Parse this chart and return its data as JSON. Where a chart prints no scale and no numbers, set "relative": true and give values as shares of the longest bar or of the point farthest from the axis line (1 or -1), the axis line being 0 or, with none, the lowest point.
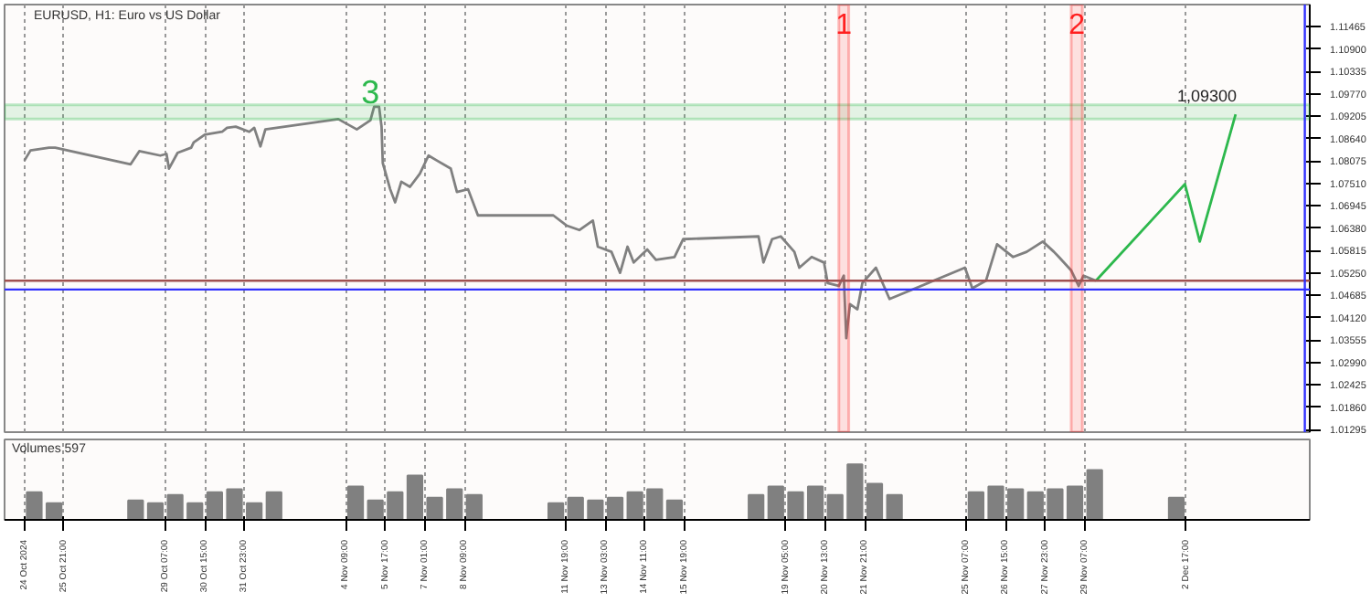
{
  "chart_data": [
    {
      "type": "line",
      "title": "EURUSD, H1: Euro vs US Dollar",
      "xlim": [
        "2024-10-23T21:00",
        "2024-12-06T21:00"
      ],
      "ylim": [
        1.0123,
        1.1202
      ],
      "xticks": [
        "2024-10-24T13:00",
        "2024-10-25T21:00",
        "2024-10-29T07:00",
        "2024-10-30T15:00",
        "2024-10-31T23:00",
        "2024-11-04T09:00",
        "2024-11-05T17:00",
        "2024-11-07T01:00",
        "2024-11-08T09:00",
        "2024-11-11T19:00",
        "2024-11-13T03:00",
        "2024-11-14T11:00",
        "2024-11-15T19:00",
        "2024-11-19T05:00",
        "2024-11-20T13:00",
        "2024-11-21T21:00",
        "2024-11-25T07:00",
        "2024-11-26T15:00",
        "2024-11-27T23:00",
        "2024-11-29T07:00",
        "2024-12-02T17:00"
      ],
      "yticks": [
        1.11465,
        {
          "value": 1.109,
          "label": "1.10900"
        },
        1.10335,
        {
          "value": 1.0977,
          "label": "1.09770"
        },
        1.09205,
        {
          "value": 1.0864,
          "label": "1.08640"
        },
        1.08075,
        {
          "value": 1.0751,
          "label": "1.07510"
        },
        1.06945,
        {
          "value": 1.0638,
          "label": "1.06380"
        },
        1.05815,
        {
          "value": 1.0525,
          "label": "1.05250"
        },
        1.04685,
        {
          "value": 1.0412,
          "label": "1.04120"
        },
        1.03555,
        {
          "value": 1.0299,
          "label": "1.02990"
        },
        1.02425,
        {
          "value": 1.0186,
          "label": "1.01860"
        },
        1.01295
      ],
      "tick_labels": "y",
      "grid": "x",
      "marker": "none",
      "series": [
        {
          "color": "#808080",
          "x": [
            "2024-10-24T13:00",
            "2024-10-24T18:00",
            "2024-10-25T09:00",
            "2024-10-25T14:00",
            "2024-10-28T03:00",
            "2024-10-28T10:00",
            "2024-10-29T03:00",
            "2024-10-29T08:00",
            "2024-10-29T10:00",
            "2024-10-29T17:00",
            "2024-10-30T04:00",
            "2024-10-30T06:00",
            "2024-10-30T15:00",
            "2024-10-31T05:00",
            "2024-10-31T09:00",
            "2024-10-31T16:00",
            "2024-11-01T03:00",
            "2024-11-01T07:00",
            "2024-11-01T12:00",
            "2024-11-01T16:00",
            "2024-11-04T03:00",
            "2024-11-04T18:00",
            "2024-11-05T05:00",
            "2024-11-05T08:00",
            "2024-11-05T12:00",
            "2024-11-05T14:00",
            "2024-11-05T15:00",
            "2024-11-05T21:00",
            "2024-11-06T01:00",
            "2024-11-06T06:00",
            "2024-11-06T13:00",
            "2024-11-06T21:00",
            "2024-11-07T04:00",
            "2024-11-07T11:00",
            "2024-11-07T22:00",
            "2024-11-08T03:00",
            "2024-11-08T12:00",
            "2024-11-08T20:00",
            "2024-11-11T09:00",
            "2024-11-11T20:00",
            "2024-11-12T06:00",
            "2024-11-12T17:00",
            "2024-11-12T21:00",
            "2024-11-13T08:00",
            "2024-11-13T15:00",
            "2024-11-13T21:00",
            "2024-11-14T02:00",
            "2024-11-14T13:00",
            "2024-11-14T20:00",
            "2024-11-15T11:00",
            "2024-11-15T18:00",
            "2024-11-18T07:00",
            "2024-11-18T11:00",
            "2024-11-18T18:00",
            "2024-11-19T01:00",
            "2024-11-19T12:00",
            "2024-11-19T16:00",
            "2024-11-20T02:00",
            "2024-11-20T12:00",
            "2024-11-20T15:00",
            "2024-11-21T00:00",
            "2024-11-21T04:00",
            "2024-11-21T06:00",
            "2024-11-21T09:00",
            "2024-11-21T15:00",
            "2024-11-21T19:00",
            "2024-11-22T06:00",
            "2024-11-22T17:00",
            "2024-11-25T06:00",
            "2024-11-25T12:00",
            "2024-11-25T23:00",
            "2024-11-26T08:00",
            "2024-11-26T21:00",
            "2024-11-27T08:00",
            "2024-11-27T21:00",
            "2024-11-28T06:00",
            "2024-11-28T10:00",
            "2024-11-28T20:00",
            "2024-11-29T02:00",
            "2024-11-29T06:00",
            "2024-11-29T16:00"
          ],
          "values": [
            1.0808,
            1.0834,
            1.0841,
            1.0841,
            1.0799,
            1.0832,
            1.0821,
            1.0825,
            1.0788,
            1.0828,
            1.0841,
            1.0854,
            1.0874,
            1.0881,
            1.0891,
            1.0894,
            1.0881,
            1.0891,
            1.0844,
            1.0887,
            1.0913,
            1.0887,
            1.091,
            1.0944,
            1.0944,
            1.0894,
            1.0802,
            1.0736,
            1.0703,
            1.0755,
            1.0742,
            1.0775,
            1.0821,
            1.0808,
            1.0788,
            1.0729,
            1.0736,
            1.067,
            1.067,
            1.0644,
            1.0633,
            1.0657,
            1.0591,
            1.0578,
            1.0525,
            1.0591,
            1.0551,
            1.0584,
            1.0558,
            1.0565,
            1.061,
            1.0617,
            1.0551,
            1.061,
            1.0617,
            1.0578,
            1.0538,
            1.0565,
            1.0551,
            1.0499,
            1.0492,
            1.0518,
            1.036,
            1.0446,
            1.0433,
            1.0499,
            1.0538,
            1.0459,
            1.0538,
            1.0486,
            1.0505,
            1.0597,
            1.0565,
            1.0578,
            1.0604,
            1.0578,
            1.0565,
            1.0531,
            1.0492,
            1.0518,
            1.0505
          ]
        },
        {
          "color": "#2db84d",
          "x": [
            "2024-11-29T16:00",
            "2024-12-02T16:00",
            "2024-12-03T04:00",
            "2024-12-04T09:00"
          ],
          "values": [
            1.0505,
            1.0749,
            1.0604,
            1.0925
          ]
        }
      ],
      "ref_lines": [
        {
          "axis": "y",
          "value": 1.0505,
          "color": "#a05050"
        },
        {
          "axis": "y",
          "value": 1.0483,
          "color": "#3030ff"
        },
        {
          "axis": "x",
          "value": "2024-12-06T17:00",
          "color": "#3030ff"
        }
      ],
      "bands": [
        {
          "axis": "y",
          "from": 1.0913,
          "to": 1.0949,
          "label": "1,09300",
          "color": "#2db84d"
        },
        {
          "axis": "x",
          "from": "2024-11-21T00:00",
          "to": "2024-11-21T08:00",
          "label": "1",
          "color": "#ff2020"
        },
        {
          "axis": "x",
          "from": "2024-11-28T20:00",
          "to": "2024-11-29T05:00",
          "label": "2",
          "color": "#ff2020"
        }
      ],
      "annotations": [
        {
          "text": "3",
          "x": "2024-11-05T05:00",
          "y": 1.0949
        }
      ]
    },
    {
      "type": "bar",
      "title": "Volumes 597",
      "relative": true,
      "color": "#808080",
      "xlim": [
        "2024-10-23T21:00",
        "2024-12-06T21:00"
      ],
      "xticks": [
        {
          "value": "2024-10-24T13:00",
          "label": "24 Oct 2024"
        },
        {
          "value": "2024-10-25T21:00",
          "label": "25 Oct 21:00"
        },
        {
          "value": "2024-10-29T07:00",
          "label": "29 Oct 07:00"
        },
        {
          "value": "2024-10-30T15:00",
          "label": "30 Oct 15:00"
        },
        {
          "value": "2024-10-31T23:00",
          "label": "31 Oct 23:00"
        },
        {
          "value": "2024-11-04T09:00",
          "label": "4 Nov 09:00"
        },
        {
          "value": "2024-11-05T17:00",
          "label": "5 Nov 17:00"
        },
        {
          "value": "2024-11-07T01:00",
          "label": "7 Nov 01:00"
        },
        {
          "value": "2024-11-08T09:00",
          "label": "8 Nov 09:00"
        },
        {
          "value": "2024-11-11T19:00",
          "label": "11 Nov 19:00"
        },
        {
          "value": "2024-11-13T03:00",
          "label": "13 Nov 03:00"
        },
        {
          "value": "2024-11-14T11:00",
          "label": "14 Nov 11:00"
        },
        {
          "value": "2024-11-15T19:00",
          "label": "15 Nov 19:00"
        },
        {
          "value": "2024-11-19T05:00",
          "label": "19 Nov 05:00"
        },
        {
          "value": "2024-11-20T13:00",
          "label": "20 Nov 13:00"
        },
        {
          "value": "2024-11-21T21:00",
          "label": "21 Nov 21:00"
        },
        {
          "value": "2024-11-25T07:00",
          "label": "25 Nov 07:00"
        },
        {
          "value": "2024-11-26T15:00",
          "label": "26 Nov 15:00"
        },
        {
          "value": "2024-11-27T23:00",
          "label": "27 Nov 23:00"
        },
        {
          "value": "2024-11-29T07:00",
          "label": "29 Nov 07:00"
        },
        {
          "value": "2024-12-02T17:00",
          "label": "2 Dec 17:00"
        }
      ],
      "tick_labels": "x",
      "grid": "x",
      "x": [
        "2024-10-24T21:00",
        "2024-10-25T13:00",
        "2024-10-28T07:00",
        "2024-10-28T23:00",
        "2024-10-29T15:00",
        "2024-10-30T07:00",
        "2024-10-30T23:00",
        "2024-10-31T15:00",
        "2024-11-01T07:00",
        "2024-11-01T23:00",
        "2024-11-04T17:00",
        "2024-11-05T09:00",
        "2024-11-06T01:00",
        "2024-11-06T17:00",
        "2024-11-07T09:00",
        "2024-11-08T01:00",
        "2024-11-08T17:00",
        "2024-11-11T11:00",
        "2024-11-12T03:00",
        "2024-11-12T19:00",
        "2024-11-13T11:00",
        "2024-11-14T03:00",
        "2024-11-14T19:00",
        "2024-11-15T11:00",
        "2024-11-18T05:00",
        "2024-11-18T21:00",
        "2024-11-19T13:00",
        "2024-11-20T05:00",
        "2024-11-20T21:00",
        "2024-11-21T13:00",
        "2024-11-22T05:00",
        "2024-11-22T21:00",
        "2024-11-25T15:00",
        "2024-11-26T07:00",
        "2024-11-26T23:00",
        "2024-11-27T15:00",
        "2024-11-28T07:00",
        "2024-11-28T23:00",
        "2024-11-29T15:00",
        "2024-12-02T09:00"
      ],
      "values": [
        0.5,
        0.3,
        0.35,
        0.3,
        0.45,
        0.3,
        0.5,
        0.55,
        0.3,
        0.5,
        0.6,
        0.35,
        0.5,
        0.8,
        0.4,
        0.55,
        0.45,
        0.3,
        0.4,
        0.35,
        0.4,
        0.5,
        0.55,
        0.35,
        0.45,
        0.6,
        0.5,
        0.6,
        0.45,
        1.0,
        0.65,
        0.45,
        0.5,
        0.6,
        0.55,
        0.5,
        0.55,
        0.6,
        0.9,
        0.4
      ]
    }
  ]
}
